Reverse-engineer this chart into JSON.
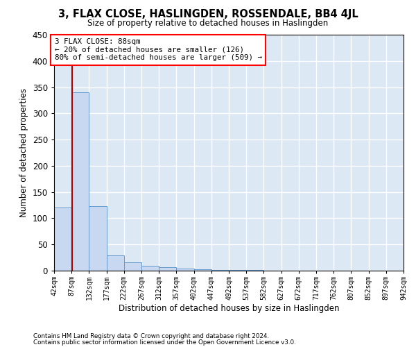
{
  "title": "3, FLAX CLOSE, HASLINGDEN, ROSSENDALE, BB4 4JL",
  "subtitle": "Size of property relative to detached houses in Haslingden",
  "xlabel": "Distribution of detached houses by size in Haslingden",
  "ylabel": "Number of detached properties",
  "bar_color": "#c8d8f0",
  "bar_edge_color": "#6699cc",
  "background_color": "#dde8f5",
  "grid_color": "#ffffff",
  "bins": [
    42,
    87,
    132,
    177,
    222,
    267,
    312,
    357,
    402,
    447,
    492,
    537,
    582,
    627,
    672,
    717,
    762,
    807,
    852,
    897,
    942
  ],
  "values": [
    120,
    340,
    123,
    29,
    16,
    9,
    6,
    4,
    2,
    1,
    1,
    1,
    0,
    0,
    0,
    0,
    0,
    0,
    0,
    0
  ],
  "property_size": 88,
  "annotation_line1": "3 FLAX CLOSE: 88sqm",
  "annotation_line2": "← 20% of detached houses are smaller (126)",
  "annotation_line3": "80% of semi-detached houses are larger (509) →",
  "vline_color": "#aa0000",
  "ylim": [
    0,
    450
  ],
  "yticks": [
    0,
    50,
    100,
    150,
    200,
    250,
    300,
    350,
    400,
    450
  ],
  "footnote1": "Contains HM Land Registry data © Crown copyright and database right 2024.",
  "footnote2": "Contains public sector information licensed under the Open Government Licence v3.0."
}
